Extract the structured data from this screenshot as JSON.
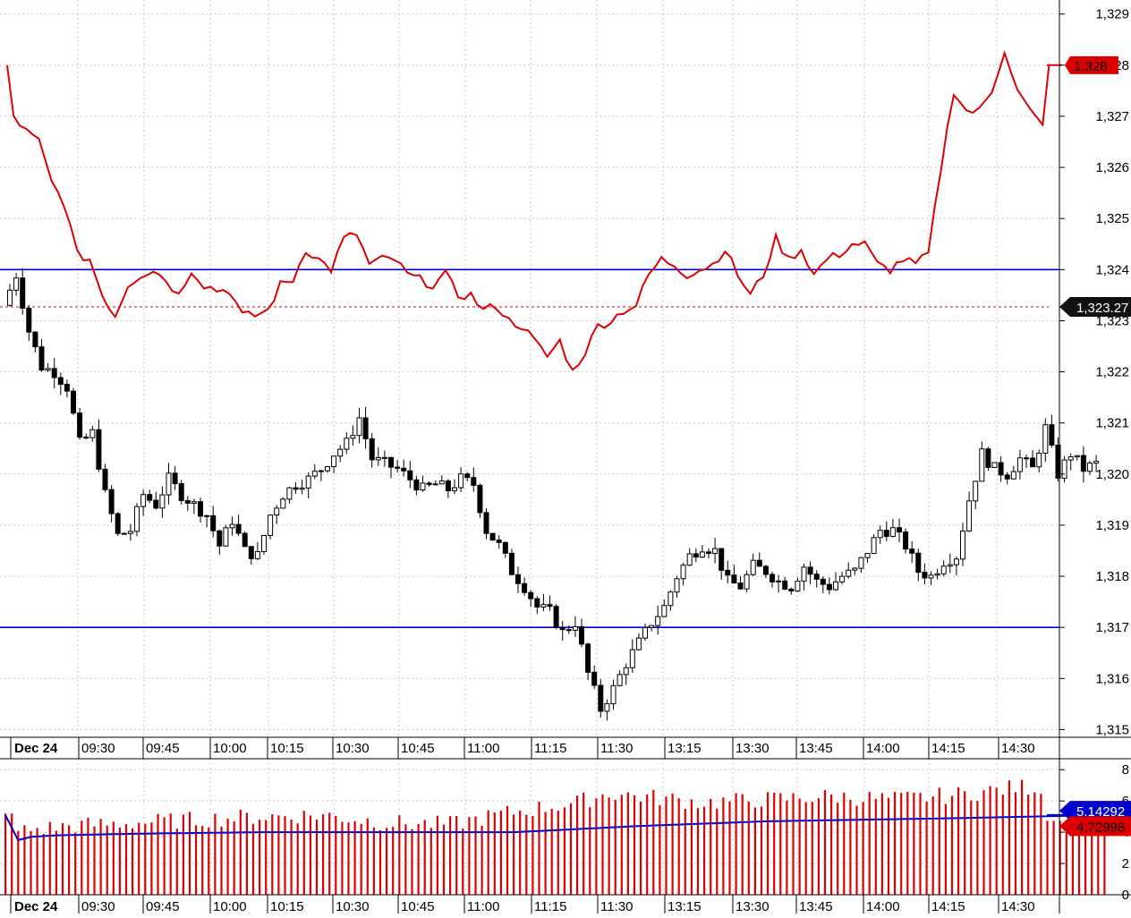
{
  "chart_data": [
    {
      "type": "candlestick",
      "panel": "price",
      "y_axis_ticks": [
        "1,329",
        "1,328",
        "1,327",
        "1,326",
        "1,325",
        "1,324",
        "1,323",
        "1,322",
        "1,321",
        "1,320",
        "1,319",
        "1,318",
        "1,317",
        "1,316",
        "1,315"
      ],
      "y_tick_values": [
        1329,
        1328,
        1327,
        1326,
        1325,
        1324,
        1323,
        1322,
        1321,
        1320,
        1319,
        1318,
        1317,
        1316,
        1315
      ],
      "ylim": [
        1314.85,
        1329.1
      ],
      "x_axis_labels": [
        "Dec 24",
        "09:30",
        "09:45",
        "10:00",
        "10:15",
        "10:30",
        "10:45",
        "11:00",
        "11:15",
        "11:30",
        "13:15",
        "13:30",
        "13:45",
        "14:00",
        "14:15",
        "14:30"
      ],
      "horizontal_lines": [
        {
          "value": 1324,
          "color": "#0000cc"
        },
        {
          "value": 1317,
          "color": "#0000cc"
        },
        {
          "value": 1323.27,
          "color": "#dd0000",
          "style": "dashed"
        }
      ],
      "badges": [
        {
          "text": "1,328",
          "value": 1328,
          "bg": "#dd0000",
          "fg": "#000000"
        },
        {
          "text": "1,323.27",
          "value": 1323.27,
          "bg": "#111111",
          "fg": "#ffffff"
        }
      ],
      "candle_anchors": [
        [
          0,
          1323.3
        ],
        [
          2,
          1323.9
        ],
        [
          4,
          1322.8
        ],
        [
          6,
          1322.1
        ],
        [
          8,
          1322.0
        ],
        [
          10,
          1321.7
        ],
        [
          12,
          1320.6
        ],
        [
          14,
          1320.8
        ],
        [
          16,
          1319.6
        ],
        [
          18,
          1318.8
        ],
        [
          20,
          1318.9
        ],
        [
          22,
          1319.6
        ],
        [
          24,
          1319.4
        ],
        [
          26,
          1319.9
        ],
        [
          28,
          1319.6
        ],
        [
          30,
          1319.4
        ],
        [
          32,
          1319.2
        ],
        [
          34,
          1318.6
        ],
        [
          36,
          1319.1
        ],
        [
          38,
          1318.5
        ],
        [
          40,
          1318.4
        ],
        [
          42,
          1319.2
        ],
        [
          44,
          1319.6
        ],
        [
          46,
          1319.8
        ],
        [
          48,
          1319.9
        ],
        [
          50,
          1320.1
        ],
        [
          52,
          1320.4
        ],
        [
          54,
          1320.6
        ],
        [
          56,
          1321.1
        ],
        [
          58,
          1320.3
        ],
        [
          60,
          1320.2
        ],
        [
          62,
          1320.1
        ],
        [
          64,
          1319.9
        ],
        [
          66,
          1319.7
        ],
        [
          68,
          1319.8
        ],
        [
          70,
          1319.7
        ],
        [
          72,
          1319.9
        ],
        [
          74,
          1319.8
        ],
        [
          76,
          1318.9
        ],
        [
          78,
          1318.6
        ],
        [
          80,
          1318.1
        ],
        [
          82,
          1317.8
        ],
        [
          84,
          1317.4
        ],
        [
          86,
          1317.3
        ],
        [
          88,
          1316.9
        ],
        [
          90,
          1317.1
        ],
        [
          92,
          1316.1
        ],
        [
          94,
          1315.4
        ],
        [
          96,
          1315.8
        ],
        [
          98,
          1316.3
        ],
        [
          100,
          1316.7
        ],
        [
          102,
          1317.1
        ],
        [
          104,
          1317.4
        ],
        [
          106,
          1318.0
        ],
        [
          108,
          1318.4
        ],
        [
          110,
          1318.6
        ],
        [
          112,
          1318.5
        ],
        [
          114,
          1317.9
        ],
        [
          116,
          1317.8
        ],
        [
          118,
          1318.2
        ],
        [
          120,
          1318.1
        ],
        [
          122,
          1317.9
        ],
        [
          124,
          1317.8
        ],
        [
          126,
          1318.2
        ],
        [
          128,
          1317.9
        ],
        [
          130,
          1317.8
        ],
        [
          132,
          1318.0
        ],
        [
          134,
          1318.1
        ],
        [
          136,
          1318.5
        ],
        [
          138,
          1318.9
        ],
        [
          140,
          1318.9
        ],
        [
          142,
          1318.6
        ],
        [
          144,
          1318.1
        ],
        [
          146,
          1318.0
        ],
        [
          148,
          1318.3
        ],
        [
          150,
          1318.4
        ],
        [
          152,
          1319.5
        ],
        [
          154,
          1320.4
        ],
        [
          156,
          1320.1
        ],
        [
          158,
          1320.0
        ],
        [
          160,
          1320.3
        ],
        [
          162,
          1320.1
        ],
        [
          164,
          1320.9
        ],
        [
          166,
          1320.0
        ],
        [
          168,
          1320.4
        ],
        [
          170,
          1320.1
        ],
        [
          172,
          1320.2
        ]
      ]
    },
    {
      "type": "line",
      "panel": "price-overlay",
      "color": "#dd0000",
      "line_anchors": [
        [
          0,
          1328.0
        ],
        [
          1,
          1327.0
        ],
        [
          3,
          1326.7
        ],
        [
          5,
          1326.5
        ],
        [
          7,
          1325.7
        ],
        [
          9,
          1325.3
        ],
        [
          11,
          1324.3
        ],
        [
          13,
          1324.2
        ],
        [
          15,
          1323.5
        ],
        [
          17,
          1323.1
        ],
        [
          19,
          1323.7
        ],
        [
          21,
          1323.9
        ],
        [
          23,
          1324.0
        ],
        [
          25,
          1323.8
        ],
        [
          27,
          1323.5
        ],
        [
          29,
          1324.0
        ],
        [
          31,
          1323.7
        ],
        [
          33,
          1323.6
        ],
        [
          35,
          1323.6
        ],
        [
          37,
          1323.1
        ],
        [
          39,
          1323.1
        ],
        [
          41,
          1323.2
        ],
        [
          43,
          1323.7
        ],
        [
          45,
          1323.8
        ],
        [
          47,
          1324.4
        ],
        [
          49,
          1324.2
        ],
        [
          51,
          1324.0
        ],
        [
          53,
          1324.6
        ],
        [
          55,
          1324.7
        ],
        [
          57,
          1324.1
        ],
        [
          59,
          1324.2
        ],
        [
          61,
          1324.2
        ],
        [
          63,
          1323.9
        ],
        [
          65,
          1323.8
        ],
        [
          67,
          1323.7
        ],
        [
          69,
          1323.9
        ],
        [
          71,
          1323.5
        ],
        [
          73,
          1323.5
        ],
        [
          75,
          1323.2
        ],
        [
          77,
          1323.3
        ],
        [
          79,
          1323.0
        ],
        [
          81,
          1322.9
        ],
        [
          83,
          1322.6
        ],
        [
          85,
          1322.3
        ],
        [
          87,
          1322.6
        ],
        [
          89,
          1322.0
        ],
        [
          91,
          1322.4
        ],
        [
          93,
          1322.9
        ],
        [
          95,
          1323.0
        ],
        [
          97,
          1323.2
        ],
        [
          99,
          1323.3
        ],
        [
          101,
          1323.9
        ],
        [
          103,
          1324.2
        ],
        [
          105,
          1324.1
        ],
        [
          107,
          1323.9
        ],
        [
          109,
          1324.0
        ],
        [
          111,
          1324.1
        ],
        [
          113,
          1324.4
        ],
        [
          115,
          1323.9
        ],
        [
          117,
          1323.5
        ],
        [
          119,
          1323.9
        ],
        [
          121,
          1324.6
        ],
        [
          123,
          1324.2
        ],
        [
          125,
          1324.4
        ],
        [
          127,
          1323.9
        ],
        [
          129,
          1324.2
        ],
        [
          131,
          1324.3
        ],
        [
          133,
          1324.5
        ],
        [
          135,
          1324.5
        ],
        [
          137,
          1324.1
        ],
        [
          139,
          1324.0
        ],
        [
          141,
          1324.2
        ],
        [
          143,
          1324.1
        ],
        [
          145,
          1324.3
        ],
        [
          147,
          1326.0
        ],
        [
          149,
          1327.5
        ],
        [
          151,
          1327.1
        ],
        [
          153,
          1327.1
        ],
        [
          155,
          1327.5
        ],
        [
          157,
          1328.3
        ],
        [
          159,
          1327.5
        ],
        [
          161,
          1327.1
        ],
        [
          163,
          1326.8
        ],
        [
          164,
          1328.0
        ],
        [
          173,
          1328.0
        ]
      ]
    },
    {
      "type": "bar",
      "panel": "volume",
      "color": "#dd0000",
      "y_axis_ticks": [
        "8",
        "6",
        "4",
        "2",
        "0"
      ],
      "y_tick_values": [
        8,
        6,
        4,
        2,
        0
      ],
      "ylim": [
        0,
        8.7
      ],
      "badges": [
        {
          "text": "5.14292",
          "value": 5.14292,
          "bg": "#0000cc",
          "fg": "#ffffff"
        },
        {
          "text": "4.72998",
          "value": 4.72998,
          "bg": "#dd0000",
          "fg": "#000000"
        }
      ],
      "bar_anchors": [
        [
          0,
          4.0
        ],
        [
          10,
          4.4
        ],
        [
          20,
          4.6
        ],
        [
          30,
          4.8
        ],
        [
          40,
          5.0
        ],
        [
          50,
          5.1
        ],
        [
          60,
          4.6
        ],
        [
          70,
          4.5
        ],
        [
          80,
          5.3
        ],
        [
          90,
          5.9
        ],
        [
          95,
          6.5
        ],
        [
          100,
          6.3
        ],
        [
          110,
          5.9
        ],
        [
          120,
          6.1
        ],
        [
          130,
          6.3
        ],
        [
          140,
          6.1
        ],
        [
          150,
          6.4
        ],
        [
          160,
          6.9
        ],
        [
          165,
          6.8
        ],
        [
          170,
          6.2
        ],
        [
          173,
          5.2
        ]
      ]
    },
    {
      "type": "line",
      "panel": "volume-overlay",
      "color": "#0000cc",
      "line_anchors": [
        [
          0,
          5.1
        ],
        [
          2,
          3.5
        ],
        [
          4,
          3.7
        ],
        [
          8,
          3.8
        ],
        [
          20,
          3.9
        ],
        [
          40,
          4.0
        ],
        [
          80,
          4.0
        ],
        [
          100,
          4.4
        ],
        [
          120,
          4.7
        ],
        [
          150,
          4.9
        ],
        [
          173,
          5.1
        ]
      ]
    }
  ]
}
